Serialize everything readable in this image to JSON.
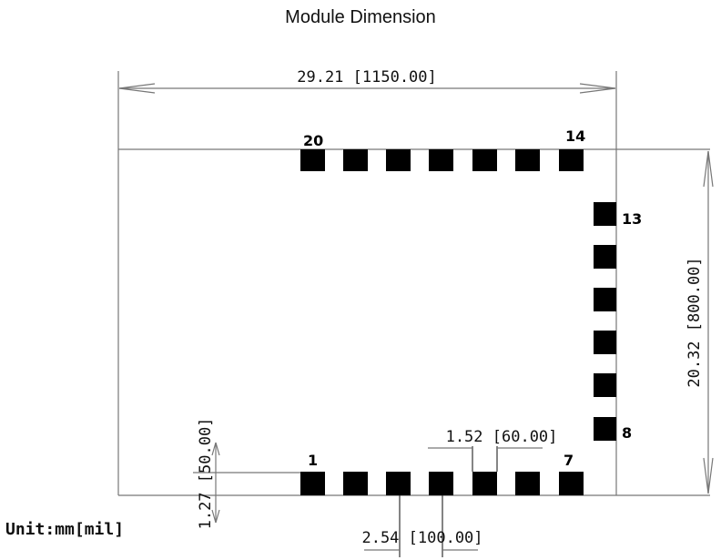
{
  "title": "Module Dimension",
  "dim_width": "29.21 [1150.00]",
  "dim_height": "20.32 [800.00]",
  "dim_pad_height": "1.27 [50.00]",
  "dim_pad_width": "1.52 [60.00]",
  "dim_pitch": "2.54 [100.00]",
  "unit": "Unit:mm[mil]",
  "pins": {
    "pin1": "1",
    "pin7": "7",
    "pin8": "8",
    "pin13": "13",
    "pin14": "14",
    "pin20": "20"
  },
  "colors": {
    "pad": "#000000",
    "outline": "#777777"
  }
}
